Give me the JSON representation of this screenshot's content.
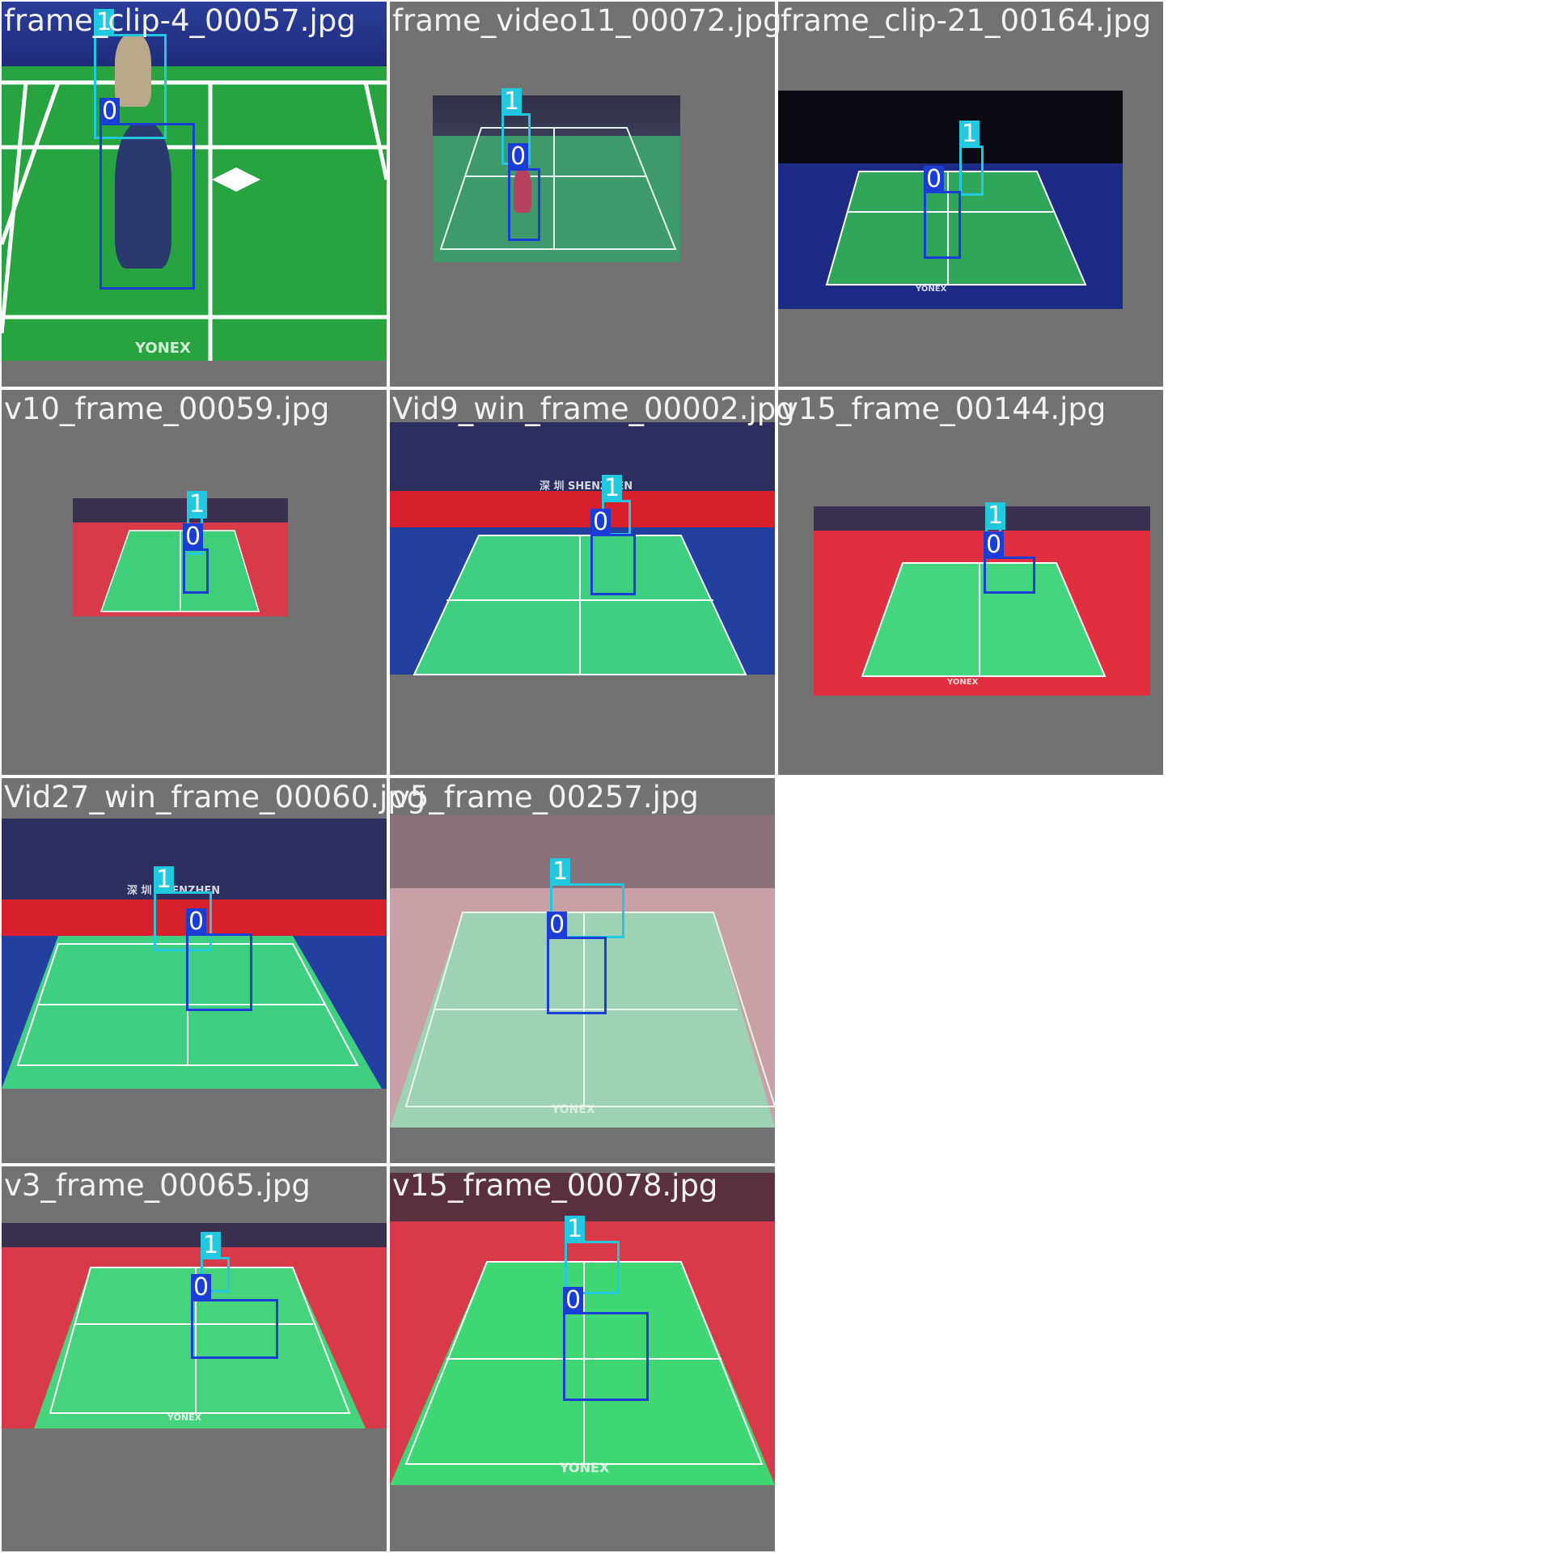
{
  "grid": {
    "tiles": [
      {
        "filename": "frame_clip-4_00057.jpg",
        "scene": "close-court",
        "colors": {
          "floor": "#27a33f",
          "crowd": "#1e2c7a"
        },
        "boxes": [
          {
            "class": "1",
            "color": "#22c8e0"
          },
          {
            "class": "0",
            "color": "#1a3dd6"
          }
        ],
        "watermark": "YONEX"
      },
      {
        "filename": "frame_video11_00072.jpg",
        "scene": "wide-court",
        "colors": {
          "floor": "#3f9a6b",
          "crowd": "#3a3d55"
        },
        "boxes": [
          {
            "class": "1",
            "color": "#22c8e0"
          },
          {
            "class": "0",
            "color": "#1a3dd6"
          }
        ]
      },
      {
        "filename": "frame_clip-21_00164.jpg",
        "scene": "wide-court",
        "colors": {
          "floor": "#2fa65a",
          "crowd": "#0a0a12"
        },
        "boxes": [
          {
            "class": "1",
            "color": "#22c8e0"
          },
          {
            "class": "0",
            "color": "#1a3dd6"
          }
        ],
        "watermark": "YONEX"
      },
      {
        "filename": "v10_frame_00059.jpg",
        "scene": "wide-court",
        "colors": {
          "floor": "#3fce7a",
          "crowd": "#d83a4a"
        },
        "boxes": [
          {
            "class": "1",
            "color": "#22c8e0"
          },
          {
            "class": "0",
            "color": "#1a3dd6"
          }
        ]
      },
      {
        "filename": "Vid9_win_frame_00002.jpg",
        "scene": "wide-court",
        "colors": {
          "floor": "#3fcf80",
          "crowd": "#2b2e5e"
        },
        "boxes": [
          {
            "class": "1",
            "color": "#22c8e0"
          },
          {
            "class": "0",
            "color": "#1a3dd6"
          }
        ],
        "banner_text": "深 圳 SHENZHEN"
      },
      {
        "filename": "v15_frame_00144.jpg",
        "scene": "wide-court",
        "colors": {
          "floor": "#43d67f",
          "crowd": "#e03040"
        },
        "boxes": [
          {
            "class": "1",
            "color": "#22c8e0"
          },
          {
            "class": "0",
            "color": "#1a3dd6"
          }
        ],
        "watermark": "YONEX"
      },
      {
        "filename": "Vid27_win_frame_00060.jpg",
        "scene": "wide-court",
        "colors": {
          "floor": "#3fcf80",
          "crowd": "#2b2e5e"
        },
        "boxes": [
          {
            "class": "1",
            "color": "#22c8e0"
          },
          {
            "class": "0",
            "color": "#1a3dd6"
          }
        ],
        "banner_text": "深 圳 SHENZHEN"
      },
      {
        "filename": "v5_frame_00257.jpg",
        "scene": "wide-court",
        "colors": {
          "floor": "#9dd2b4",
          "crowd": "#c9a0a6"
        },
        "boxes": [
          {
            "class": "1",
            "color": "#22c8e0"
          },
          {
            "class": "0",
            "color": "#1a3dd6"
          }
        ],
        "watermark": "YONEX"
      },
      {
        "filename": "v3_frame_00065.jpg",
        "scene": "wide-court",
        "colors": {
          "floor": "#45d47c",
          "crowd": "#d83a4a"
        },
        "boxes": [
          {
            "class": "1",
            "color": "#22c8e0"
          },
          {
            "class": "0",
            "color": "#1a3dd6"
          }
        ],
        "watermark": "YONEX"
      },
      {
        "filename": "v15_frame_00078.jpg",
        "scene": "wide-court",
        "colors": {
          "floor": "#3fd774",
          "crowd": "#d83a4a"
        },
        "boxes": [
          {
            "class": "1",
            "color": "#22c8e0"
          },
          {
            "class": "0",
            "color": "#1a3dd6"
          }
        ],
        "watermark": "YONEX"
      }
    ]
  }
}
